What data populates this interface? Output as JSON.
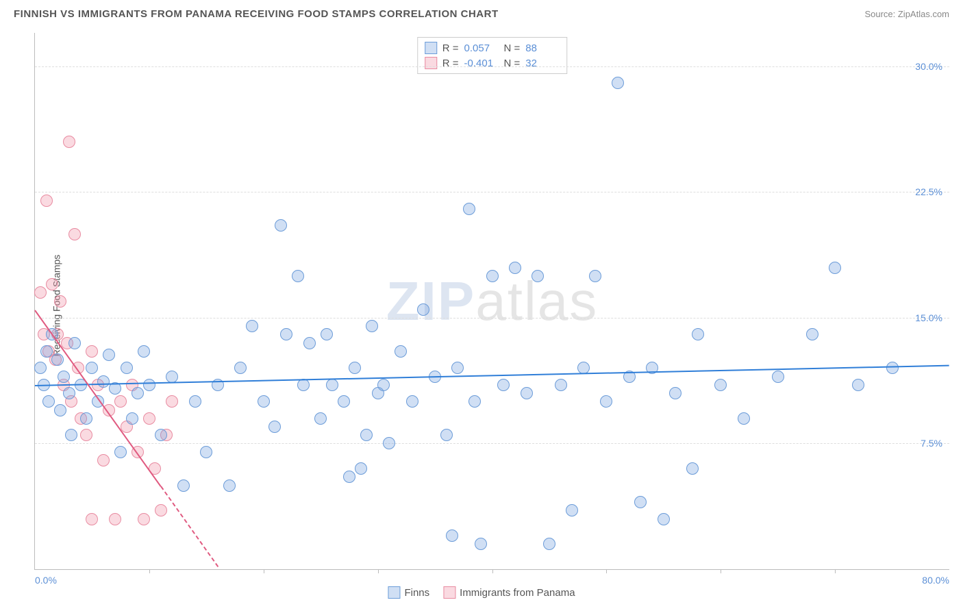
{
  "title": "FINNISH VS IMMIGRANTS FROM PANAMA RECEIVING FOOD STAMPS CORRELATION CHART",
  "source": "Source: ZipAtlas.com",
  "ylabel": "Receiving Food Stamps",
  "watermark_a": "ZIP",
  "watermark_b": "atlas",
  "chart": {
    "type": "scatter",
    "background_color": "#ffffff",
    "grid_color": "#dddddd",
    "axis_color": "#bbbbbb",
    "tick_label_color": "#5b8fd6",
    "xlim": [
      0,
      80
    ],
    "ylim": [
      0,
      32
    ],
    "y_ticks": [
      7.5,
      15.0,
      22.5,
      30.0
    ],
    "y_tick_labels": [
      "7.5%",
      "15.0%",
      "22.5%",
      "30.0%"
    ],
    "x_ticks": [
      10,
      20,
      30,
      40,
      50,
      60,
      70
    ],
    "x_corner_left": "0.0%",
    "x_corner_right": "80.0%",
    "marker_radius": 9,
    "marker_stroke_width": 1.5,
    "label_fontsize": 14,
    "title_fontsize": 15
  },
  "series": {
    "finns": {
      "label": "Finns",
      "fill": "rgba(120,163,224,0.35)",
      "stroke": "#6a9bd8",
      "trend_color": "#2f7ed8",
      "R": "0.057",
      "N": "88",
      "trend": {
        "x1": 0,
        "y1": 11.0,
        "x2": 80,
        "y2": 12.2
      },
      "points": [
        [
          0.5,
          12.0
        ],
        [
          0.8,
          11.0
        ],
        [
          1.0,
          13.0
        ],
        [
          1.2,
          10.0
        ],
        [
          1.5,
          14.0
        ],
        [
          2.0,
          12.5
        ],
        [
          2.2,
          9.5
        ],
        [
          2.5,
          11.5
        ],
        [
          3.0,
          10.5
        ],
        [
          3.2,
          8.0
        ],
        [
          3.5,
          13.5
        ],
        [
          4.0,
          11.0
        ],
        [
          4.5,
          9.0
        ],
        [
          5.0,
          12.0
        ],
        [
          5.5,
          10.0
        ],
        [
          6.0,
          11.2
        ],
        [
          6.5,
          12.8
        ],
        [
          7.0,
          10.8
        ],
        [
          7.5,
          7.0
        ],
        [
          8.0,
          12.0
        ],
        [
          8.5,
          9.0
        ],
        [
          9.0,
          10.5
        ],
        [
          9.5,
          13.0
        ],
        [
          10.0,
          11.0
        ],
        [
          11.0,
          8.0
        ],
        [
          12.0,
          11.5
        ],
        [
          13.0,
          5.0
        ],
        [
          14.0,
          10.0
        ],
        [
          15.0,
          7.0
        ],
        [
          16.0,
          11.0
        ],
        [
          17.0,
          5.0
        ],
        [
          18.0,
          12.0
        ],
        [
          19.0,
          14.5
        ],
        [
          20.0,
          10.0
        ],
        [
          21.0,
          8.5
        ],
        [
          21.5,
          20.5
        ],
        [
          22.0,
          14.0
        ],
        [
          23.0,
          17.5
        ],
        [
          23.5,
          11.0
        ],
        [
          24.0,
          13.5
        ],
        [
          25.0,
          9.0
        ],
        [
          25.5,
          14.0
        ],
        [
          26.0,
          11.0
        ],
        [
          27.0,
          10.0
        ],
        [
          27.5,
          5.5
        ],
        [
          28.0,
          12.0
        ],
        [
          28.5,
          6.0
        ],
        [
          29.0,
          8.0
        ],
        [
          29.5,
          14.5
        ],
        [
          30.0,
          10.5
        ],
        [
          30.5,
          11.0
        ],
        [
          31.0,
          7.5
        ],
        [
          32.0,
          13.0
        ],
        [
          33.0,
          10.0
        ],
        [
          34.0,
          15.5
        ],
        [
          35.0,
          11.5
        ],
        [
          36.0,
          8.0
        ],
        [
          36.5,
          2.0
        ],
        [
          37.0,
          12.0
        ],
        [
          38.0,
          21.5
        ],
        [
          38.5,
          10.0
        ],
        [
          39.0,
          1.5
        ],
        [
          40.0,
          17.5
        ],
        [
          41.0,
          11.0
        ],
        [
          42.0,
          18.0
        ],
        [
          43.0,
          10.5
        ],
        [
          44.0,
          17.5
        ],
        [
          45.0,
          1.5
        ],
        [
          46.0,
          11.0
        ],
        [
          47.0,
          3.5
        ],
        [
          48.0,
          12.0
        ],
        [
          49.0,
          17.5
        ],
        [
          50.0,
          10.0
        ],
        [
          51.0,
          29.0
        ],
        [
          52.0,
          11.5
        ],
        [
          53.0,
          4.0
        ],
        [
          54.0,
          12.0
        ],
        [
          55.0,
          3.0
        ],
        [
          56.0,
          10.5
        ],
        [
          57.5,
          6.0
        ],
        [
          58.0,
          14.0
        ],
        [
          60.0,
          11.0
        ],
        [
          62.0,
          9.0
        ],
        [
          65.0,
          11.5
        ],
        [
          68.0,
          14.0
        ],
        [
          70.0,
          18.0
        ],
        [
          72.0,
          11.0
        ],
        [
          75.0,
          12.0
        ]
      ]
    },
    "panama": {
      "label": "Immigrants from Panama",
      "fill": "rgba(240,150,170,0.35)",
      "stroke": "#e88aa0",
      "trend_color": "#e05a80",
      "R": "-0.401",
      "N": "32",
      "trend_solid": {
        "x1": 0,
        "y1": 15.5,
        "x2": 11,
        "y2": 5.0
      },
      "trend_dash": {
        "x1": 11,
        "y1": 5.0,
        "x2": 16,
        "y2": 0.2
      },
      "points": [
        [
          0.5,
          16.5
        ],
        [
          0.8,
          14.0
        ],
        [
          1.0,
          22.0
        ],
        [
          1.2,
          13.0
        ],
        [
          1.5,
          17.0
        ],
        [
          1.8,
          12.5
        ],
        [
          2.0,
          14.0
        ],
        [
          2.2,
          16.0
        ],
        [
          2.5,
          11.0
        ],
        [
          2.8,
          13.5
        ],
        [
          3.0,
          25.5
        ],
        [
          3.2,
          10.0
        ],
        [
          3.5,
          20.0
        ],
        [
          3.8,
          12.0
        ],
        [
          4.0,
          9.0
        ],
        [
          4.5,
          8.0
        ],
        [
          5.0,
          13.0
        ],
        [
          5.5,
          11.0
        ],
        [
          6.0,
          6.5
        ],
        [
          6.5,
          9.5
        ],
        [
          7.0,
          3.0
        ],
        [
          7.5,
          10.0
        ],
        [
          8.0,
          8.5
        ],
        [
          8.5,
          11.0
        ],
        [
          9.0,
          7.0
        ],
        [
          9.5,
          3.0
        ],
        [
          10.0,
          9.0
        ],
        [
          10.5,
          6.0
        ],
        [
          11.0,
          3.5
        ],
        [
          11.5,
          8.0
        ],
        [
          12.0,
          10.0
        ],
        [
          5.0,
          3.0
        ]
      ]
    }
  },
  "legend": {
    "r_label": "R =",
    "n_label": "N ="
  }
}
